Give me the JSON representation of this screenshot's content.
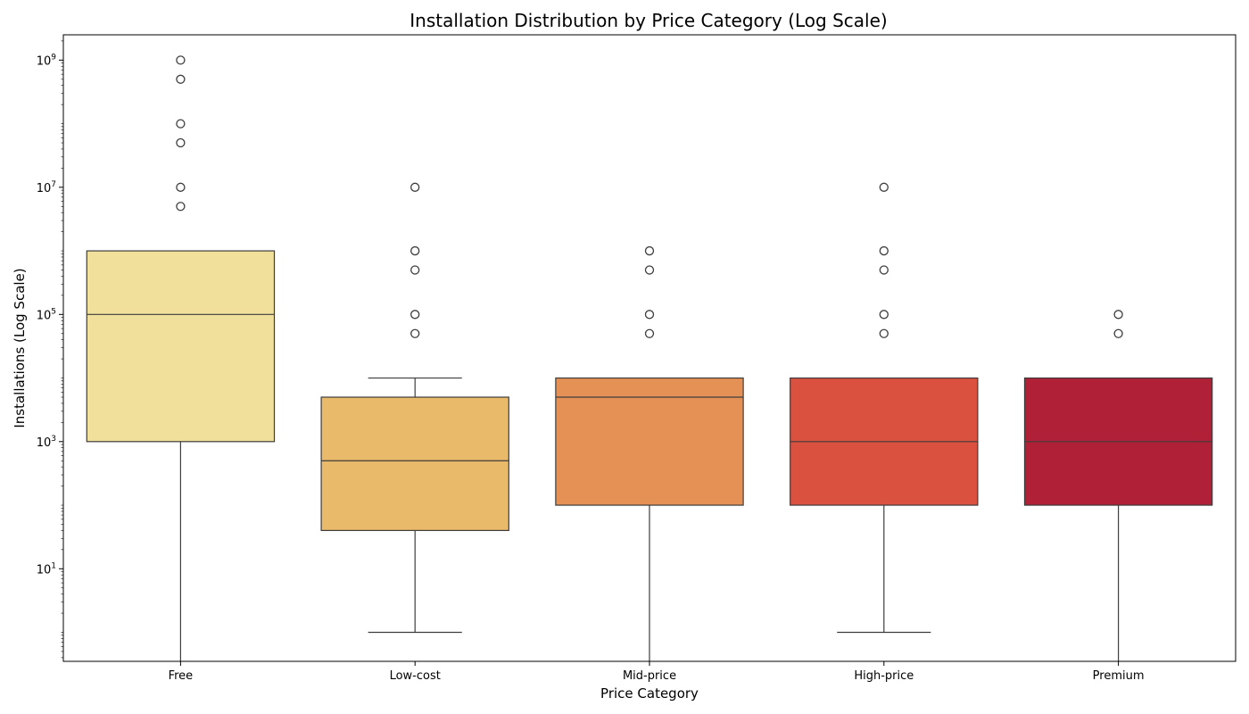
{
  "chart_data": {
    "type": "box",
    "title": "Installation Distribution by Price Category (Log Scale)",
    "xlabel": "Price Category",
    "ylabel": "Installations (Log Scale)",
    "yscale": "log",
    "ylim": [
      0.35,
      2500000000
    ],
    "yticks": [
      {
        "value": 10,
        "base": "10",
        "exp": "1"
      },
      {
        "value": 1000,
        "base": "10",
        "exp": "3"
      },
      {
        "value": 100000,
        "base": "10",
        "exp": "5"
      },
      {
        "value": 10000000,
        "base": "10",
        "exp": "7"
      },
      {
        "value": 1000000000,
        "base": "10",
        "exp": "9"
      }
    ],
    "grid": false,
    "categories": [
      "Free",
      "Low-cost",
      "Mid-price",
      "High-price",
      "Premium"
    ],
    "boxes": [
      {
        "category": "Free",
        "color": "#f1df9c",
        "whisker_low": 0.35,
        "q1": 1000,
        "median": 100000,
        "q3": 1000000,
        "whisker_high": 1000000,
        "outliers": [
          5000000,
          10000000,
          50000000,
          100000000,
          500000000,
          1000000000
        ]
      },
      {
        "category": "Low-cost",
        "color": "#eaba6b",
        "whisker_low": 1,
        "q1": 40,
        "median": 500,
        "q3": 5000,
        "whisker_high": 10000,
        "outliers": [
          50000,
          100000,
          500000,
          1000000,
          10000000
        ]
      },
      {
        "category": "Mid-price",
        "color": "#e59054",
        "whisker_low": 0.35,
        "q1": 100,
        "median": 5000,
        "q3": 10000,
        "whisker_high": 10000,
        "outliers": [
          50000,
          100000,
          500000,
          1000000
        ]
      },
      {
        "category": "High-price",
        "color": "#da5140",
        "whisker_low": 1,
        "q1": 100,
        "median": 1000,
        "q3": 10000,
        "whisker_high": 10000,
        "outliers": [
          50000,
          100000,
          500000,
          1000000,
          10000000
        ]
      },
      {
        "category": "Premium",
        "color": "#b02036",
        "whisker_low": 0.35,
        "q1": 100,
        "median": 1000,
        "q3": 10000,
        "whisker_high": 10000,
        "outliers": [
          50000,
          100000
        ]
      }
    ]
  }
}
